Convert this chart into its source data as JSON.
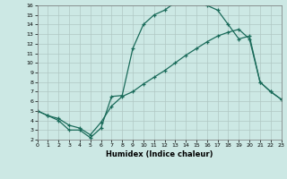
{
  "xlabel": "Humidex (Indice chaleur)",
  "bg_color": "#cce8e4",
  "grid_color": "#b0c8c4",
  "line_color": "#1a6b5a",
  "xlim": [
    0,
    23
  ],
  "ylim": [
    2,
    16
  ],
  "xticks": [
    0,
    1,
    2,
    3,
    4,
    5,
    6,
    7,
    8,
    9,
    10,
    11,
    12,
    13,
    14,
    15,
    16,
    17,
    18,
    19,
    20,
    21,
    22,
    23
  ],
  "yticks": [
    2,
    3,
    4,
    5,
    6,
    7,
    8,
    9,
    10,
    11,
    12,
    13,
    14,
    15,
    16
  ],
  "series1_x": [
    0,
    1,
    2,
    3,
    4,
    5,
    6,
    7,
    8,
    9,
    10,
    11,
    12,
    13,
    14,
    15,
    16,
    17,
    18,
    19,
    20,
    21,
    22,
    23
  ],
  "series1_y": [
    5.0,
    4.5,
    4.0,
    3.0,
    3.0,
    2.2,
    3.2,
    6.5,
    6.6,
    11.5,
    14.0,
    15.0,
    15.5,
    16.3,
    16.5,
    16.3,
    16.0,
    15.5,
    14.0,
    12.5,
    12.8,
    8.0,
    7.0,
    6.2
  ],
  "series2_x": [
    0,
    1,
    2,
    3,
    4,
    5,
    6,
    7,
    8,
    9,
    10,
    11,
    12,
    13,
    14,
    15,
    16,
    17,
    18,
    19,
    20,
    21,
    22,
    23
  ],
  "series2_y": [
    5.0,
    4.5,
    4.2,
    3.5,
    3.2,
    2.5,
    3.8,
    5.5,
    6.5,
    7.0,
    7.8,
    8.5,
    9.2,
    10.0,
    10.8,
    11.5,
    12.2,
    12.8,
    13.2,
    13.5,
    12.5,
    8.0,
    7.0,
    6.2
  ]
}
